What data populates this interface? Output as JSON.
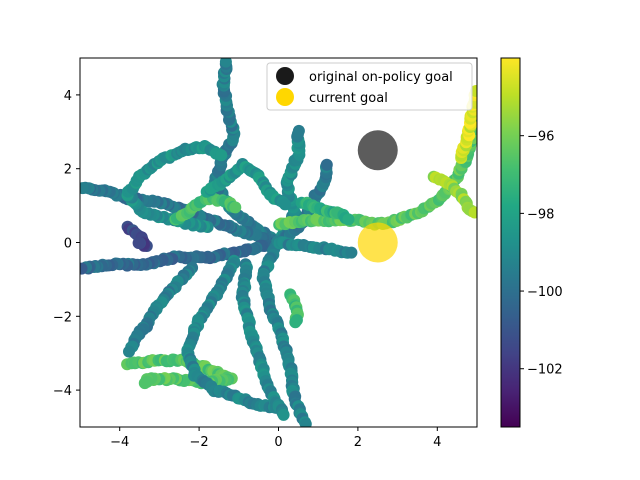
{
  "chart_data": {
    "type": "scatter",
    "title": "",
    "xlabel": "",
    "ylabel": "",
    "xlim": [
      -5,
      5
    ],
    "ylim": [
      -5,
      5
    ],
    "x_ticks": [
      -4,
      -2,
      0,
      2,
      4
    ],
    "y_ticks": [
      -4,
      -2,
      0,
      2,
      4
    ],
    "x_tick_labels": [
      "−4",
      "−2",
      "0",
      "2",
      "4"
    ],
    "y_tick_labels": [
      "−4",
      "−2",
      "0",
      "2",
      "4"
    ],
    "grid": false,
    "legend": {
      "placement": "top-right",
      "entries": [
        {
          "label": "original on-policy goal",
          "color": "#1a1a1a"
        },
        {
          "label": "current goal",
          "color": "#ffd700"
        }
      ]
    },
    "goals": [
      {
        "name": "original on-policy goal",
        "x": 2.5,
        "y": 2.5,
        "color": "#404040",
        "alpha": 0.85
      },
      {
        "name": "current goal",
        "x": 2.5,
        "y": 0.0,
        "color": "#ffd700",
        "alpha": 0.7
      }
    ],
    "colorbar": {
      "colormap": "viridis",
      "vmin": -103.5,
      "vmax": -94,
      "ticks": [
        -96,
        -98,
        -100,
        -102
      ],
      "tick_labels": [
        "−96",
        "−98",
        "−100",
        "−102"
      ]
    },
    "trajectories": [
      {
        "color_value": -99.5,
        "points": [
          [
            0,
            0
          ],
          [
            -0.6,
            0.4
          ],
          [
            -1.2,
            0.9
          ],
          [
            -1.6,
            1.6
          ],
          [
            -1.4,
            2.3
          ],
          [
            -1.1,
            2.9
          ],
          [
            -1.3,
            3.6
          ],
          [
            -1.4,
            4.3
          ],
          [
            -1.3,
            5.0
          ]
        ]
      },
      {
        "color_value": -99.8,
        "points": [
          [
            0,
            0
          ],
          [
            -0.9,
            0.3
          ],
          [
            -1.7,
            0.6
          ],
          [
            -2.4,
            0.9
          ],
          [
            -3.1,
            1.1
          ],
          [
            -3.8,
            1.2
          ],
          [
            -4.4,
            1.4
          ],
          [
            -5.0,
            1.5
          ]
        ]
      },
      {
        "color_value": -100.2,
        "points": [
          [
            0,
            0
          ],
          [
            -0.8,
            -0.2
          ],
          [
            -1.7,
            -0.4
          ],
          [
            -2.6,
            -0.4
          ],
          [
            -3.4,
            -0.6
          ],
          [
            -4.2,
            -0.6
          ],
          [
            -5.0,
            -0.7
          ]
        ]
      },
      {
        "color_value": -99.3,
        "points": [
          [
            0,
            0
          ],
          [
            -0.4,
            -0.9
          ],
          [
            -0.2,
            -1.8
          ],
          [
            0.1,
            -2.6
          ],
          [
            0.3,
            -3.4
          ],
          [
            0.4,
            -4.2
          ],
          [
            0.7,
            -5.0
          ]
        ]
      },
      {
        "color_value": -99.0,
        "points": [
          [
            0,
            0
          ],
          [
            0.4,
            0.8
          ],
          [
            0.2,
            1.6
          ],
          [
            0.5,
            2.4
          ],
          [
            0.5,
            3.1
          ]
        ]
      },
      {
        "color_value": -99.6,
        "points": [
          [
            0,
            0
          ],
          [
            0.6,
            0.5
          ],
          [
            0.9,
            1.2
          ],
          [
            1.2,
            1.7
          ],
          [
            1.2,
            2.2
          ]
        ]
      },
      {
        "color_value": -99.2,
        "points": [
          [
            0,
            0
          ],
          [
            0.7,
            -0.1
          ],
          [
            1.4,
            -0.2
          ],
          [
            1.9,
            -0.3
          ]
        ]
      },
      {
        "color_value": -96.5,
        "points": [
          [
            0,
            0.5
          ],
          [
            0.8,
            0.6
          ],
          [
            1.5,
            0.6
          ],
          [
            2.0,
            0.6
          ],
          [
            2.5,
            0.5
          ],
          [
            3.0,
            0.6
          ],
          [
            3.5,
            0.8
          ],
          [
            4.0,
            1.1
          ],
          [
            4.4,
            1.6
          ],
          [
            4.7,
            2.2
          ],
          [
            4.9,
            2.9
          ],
          [
            5.0,
            3.6
          ]
        ]
      },
      {
        "color_value": -95.5,
        "points": [
          [
            3.9,
            1.8
          ],
          [
            4.3,
            1.6
          ],
          [
            4.6,
            1.3
          ],
          [
            4.8,
            0.9
          ],
          [
            5.0,
            0.8
          ]
        ]
      },
      {
        "color_value": -94.6,
        "points": [
          [
            4.6,
            2.3
          ],
          [
            4.8,
            3.0
          ],
          [
            4.9,
            3.6
          ],
          [
            5.0,
            4.2
          ]
        ]
      },
      {
        "color_value": -97.0,
        "points": [
          [
            0.3,
            -1.4
          ],
          [
            0.5,
            -1.9
          ],
          [
            0.4,
            -2.2
          ]
        ]
      },
      {
        "color_value": -96.6,
        "points": [
          [
            -3.8,
            -3.3
          ],
          [
            -3.1,
            -3.2
          ],
          [
            -2.4,
            -3.2
          ],
          [
            -1.8,
            -3.4
          ],
          [
            -1.2,
            -3.7
          ],
          [
            -1.9,
            -3.8
          ],
          [
            -2.6,
            -3.7
          ],
          [
            -3.3,
            -3.7
          ],
          [
            -3.4,
            -3.9
          ]
        ]
      },
      {
        "color_value": -99.2,
        "points": [
          [
            -1.1,
            -0.5
          ],
          [
            -1.5,
            -1.3
          ],
          [
            -2.0,
            -2.1
          ],
          [
            -2.3,
            -2.9
          ],
          [
            -2.1,
            -3.6
          ],
          [
            -1.6,
            -4.0
          ],
          [
            -1.0,
            -4.2
          ],
          [
            -0.5,
            -4.4
          ],
          [
            0.1,
            -4.5
          ]
        ]
      },
      {
        "color_value": -99.1,
        "points": [
          [
            -0.8,
            -0.6
          ],
          [
            -0.9,
            -1.5
          ],
          [
            -0.7,
            -2.4
          ],
          [
            -0.5,
            -3.1
          ],
          [
            -0.3,
            -3.8
          ],
          [
            -0.1,
            -4.3
          ],
          [
            0.2,
            -4.7
          ]
        ]
      },
      {
        "color_value": -99.4,
        "points": [
          [
            -2.2,
            -0.7
          ],
          [
            -2.7,
            -1.3
          ],
          [
            -3.1,
            -1.8
          ],
          [
            -3.3,
            -2.2
          ],
          [
            -3.6,
            -2.6
          ],
          [
            -3.8,
            -3.0
          ]
        ]
      },
      {
        "color_value": -98.8,
        "points": [
          [
            -1.8,
            0.4
          ],
          [
            -2.6,
            0.6
          ],
          [
            -3.4,
            0.8
          ],
          [
            -3.8,
            1.3
          ],
          [
            -3.5,
            1.8
          ],
          [
            -3.0,
            2.2
          ],
          [
            -2.4,
            2.5
          ],
          [
            -1.8,
            2.6
          ],
          [
            -1.4,
            2.3
          ]
        ]
      },
      {
        "color_value": -96.8,
        "points": [
          [
            -2.6,
            0.6
          ],
          [
            -2.2,
            0.9
          ],
          [
            -1.8,
            1.2
          ],
          [
            -1.3,
            1.1
          ],
          [
            -1.0,
            0.9
          ]
        ]
      },
      {
        "color_value": -101.5,
        "points": [
          [
            -3.8,
            0.4
          ],
          [
            -3.5,
            0.2
          ],
          [
            -3.3,
            -0.1
          ],
          [
            -3.6,
            0.0
          ]
        ]
      },
      {
        "color_value": -98.5,
        "points": [
          [
            -1.8,
            1.4
          ],
          [
            -1.3,
            1.7
          ],
          [
            -0.9,
            2.1
          ],
          [
            -0.5,
            1.8
          ],
          [
            -0.2,
            1.3
          ],
          [
            0.2,
            1.0
          ]
        ]
      },
      {
        "color_value": -97.5,
        "points": [
          [
            0.6,
            1.1
          ],
          [
            1.1,
            0.9
          ],
          [
            1.5,
            0.8
          ],
          [
            1.8,
            0.6
          ]
        ]
      }
    ]
  }
}
